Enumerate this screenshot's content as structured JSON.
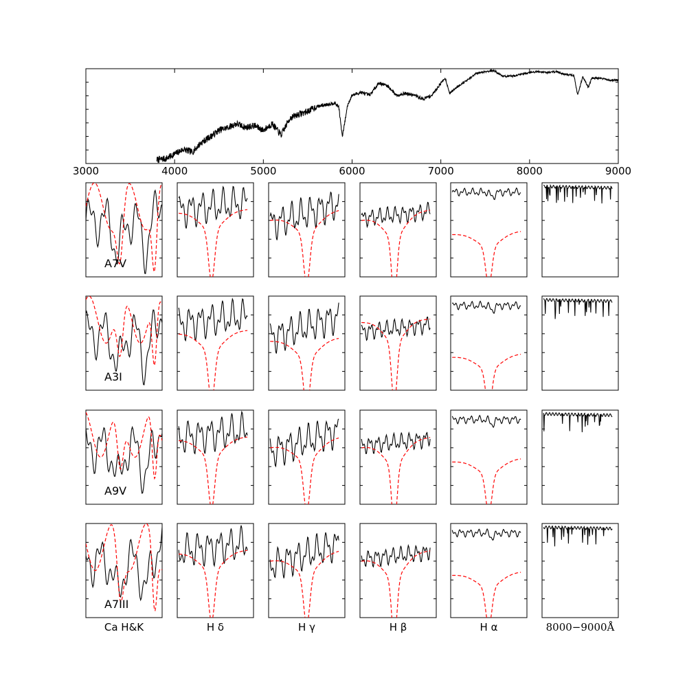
{
  "chart_data": [
    {
      "type": "line",
      "panel": "overview",
      "xlim": [
        3000,
        9000
      ],
      "x_ticks": [
        "3000",
        "4000",
        "5000",
        "6000",
        "7000",
        "8000",
        "9000"
      ],
      "grid": false,
      "series": [
        {
          "color": "#000000",
          "style": "solid",
          "x": [
            3800,
            3900,
            4000,
            4100,
            4200,
            4300,
            4400,
            4500,
            4600,
            4700,
            4800,
            4900,
            5000,
            5100,
            5200,
            5300,
            5400,
            5500,
            5600,
            5700,
            5800,
            5850,
            5890,
            5950,
            6000,
            6100,
            6200,
            6300,
            6400,
            6500,
            6600,
            6700,
            6800,
            6900,
            7000,
            7050,
            7100,
            7200,
            7300,
            7400,
            7500,
            7600,
            7700,
            7800,
            7900,
            8000,
            8100,
            8200,
            8300,
            8400,
            8500,
            8542,
            8600,
            8662,
            8700,
            8800,
            8900,
            9000
          ],
          "y": [
            0.04,
            0.05,
            0.1,
            0.15,
            0.12,
            0.22,
            0.28,
            0.35,
            0.38,
            0.42,
            0.38,
            0.4,
            0.35,
            0.42,
            0.3,
            0.48,
            0.52,
            0.55,
            0.6,
            0.62,
            0.64,
            0.6,
            0.28,
            0.62,
            0.72,
            0.75,
            0.72,
            0.85,
            0.82,
            0.72,
            0.74,
            0.72,
            0.68,
            0.72,
            0.85,
            0.9,
            0.74,
            0.82,
            0.88,
            0.95,
            0.97,
            0.98,
            0.92,
            0.92,
            0.94,
            0.96,
            0.97,
            0.96,
            0.97,
            0.94,
            0.93,
            0.72,
            0.92,
            0.8,
            0.9,
            0.9,
            0.88,
            0.88
          ]
        }
      ]
    },
    {
      "type": "line",
      "panel": "grid",
      "rows": [
        "A7V",
        "A3I",
        "A9V",
        "A7III"
      ],
      "columns": [
        {
          "label": "Ca H&K",
          "font": "sans"
        },
        {
          "label": "H δ",
          "font": "sans"
        },
        {
          "label": "H γ",
          "font": "sans"
        },
        {
          "label": "H β",
          "font": "sans"
        },
        {
          "label": "H α",
          "font": "sans"
        },
        {
          "label": "8000−9000Å",
          "font": "serif"
        }
      ],
      "series": [
        {
          "style": "solid",
          "color": "#000000"
        },
        {
          "style": "dashed",
          "color": "#ff0000"
        }
      ]
    }
  ]
}
